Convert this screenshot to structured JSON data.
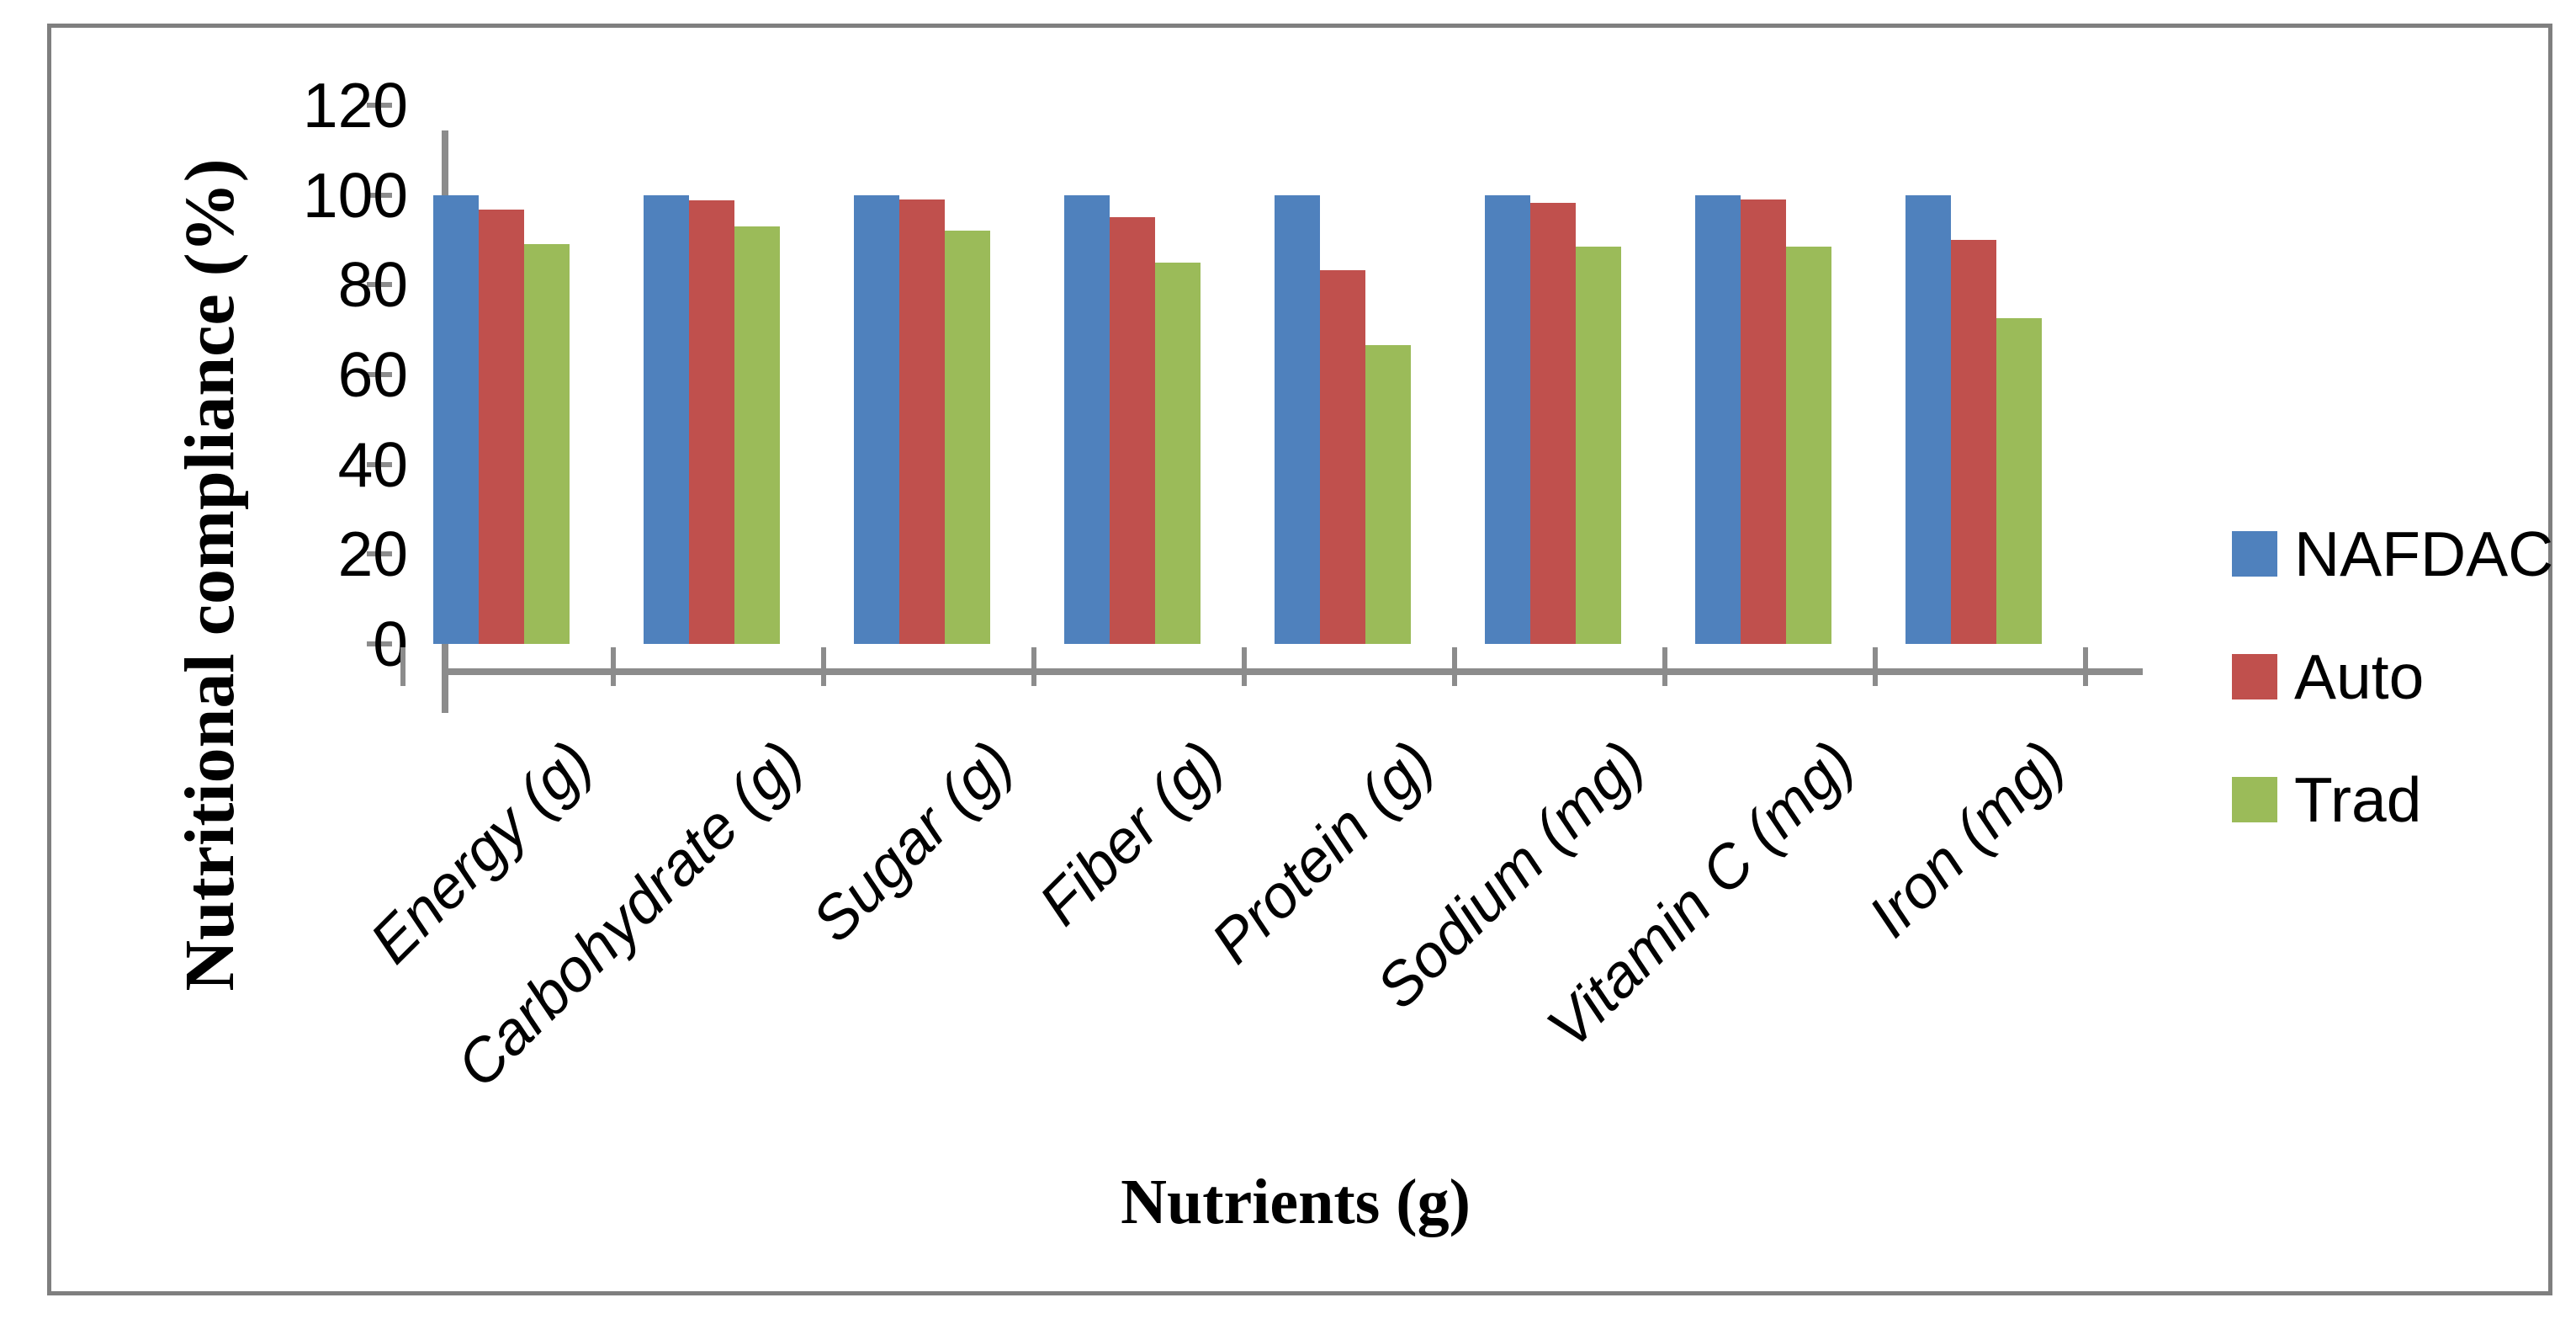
{
  "figure": {
    "background_color": "#ffffff",
    "frame_border_color": "#7f7f7f",
    "axis_color": "#8c8c8c",
    "text_color": "#000000"
  },
  "chart_data": {
    "type": "bar",
    "title": "",
    "xlabel": "Nutrients (g)",
    "ylabel": "Nutritional compliance (%)",
    "categories": [
      "Energy (g)",
      "Carbohydrate (g)",
      "Sugar (g)",
      "Fiber (g)",
      "Protein (g)",
      "Sodium (mg)",
      "Vitamin C (mg)",
      "Iron (mg)"
    ],
    "series": [
      {
        "name": "NAFDAC",
        "color": "#4F81BD",
        "values": [
          100,
          100,
          100,
          100,
          100,
          100,
          100,
          100
        ]
      },
      {
        "name": "Auto",
        "color": "#C0504D",
        "values": [
          96.7,
          98.7,
          99,
          95,
          83.3,
          98.3,
          99,
          90
        ]
      },
      {
        "name": "Trad",
        "color": "#9BBB59",
        "values": [
          89,
          93,
          92,
          85,
          66.5,
          88.5,
          88.5,
          72.5
        ]
      }
    ],
    "y_ticks": [
      0,
      20,
      40,
      60,
      80,
      100,
      120
    ],
    "ylim": [
      0,
      120
    ],
    "grid": false,
    "legend_position": "right"
  }
}
